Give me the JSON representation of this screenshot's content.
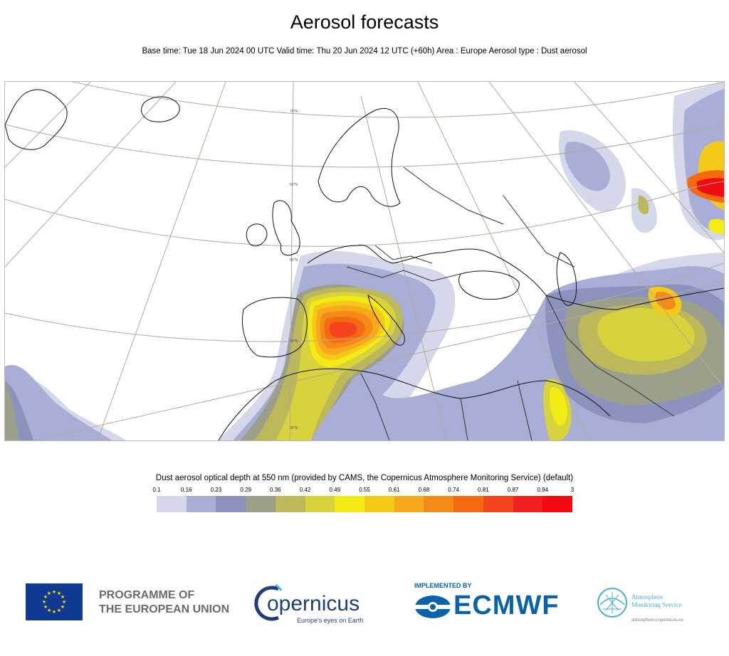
{
  "header": {
    "title": "Aerosol forecasts",
    "subtitle": "Base time: Tue 18 Jun 2024 00 UTC Valid time: Thu 20 Jun 2024 12 UTC (+60h) Area : Europe Aerosol type : Dust aerosol"
  },
  "map": {
    "lat_labels": [
      "70°N",
      "60°N",
      "50°N",
      "40°N",
      "30°N"
    ],
    "colors": {
      "sea": "#ffffff",
      "coast": "#000000",
      "border": "#222222",
      "graticule": "#b3aa96"
    }
  },
  "legend": {
    "title": "Dust aerosol optical depth at 550 nm (provided by CAMS, the Copernicus Atmosphere Monitoring Service) (default)",
    "ticks": [
      "0.1",
      "0.16",
      "0.23",
      "0.29",
      "0.36",
      "0.42",
      "0.49",
      "0.55",
      "0.61",
      "0.68",
      "0.74",
      "0.81",
      "0.87",
      "0.94",
      "3"
    ],
    "colors": [
      "#d4d8ea",
      "#a9aed6",
      "#8c92be",
      "#9ca08a",
      "#bdb85a",
      "#d8d33c",
      "#f3ec14",
      "#f5c918",
      "#f6a91b",
      "#f58b17",
      "#f56911",
      "#f4441d",
      "#f4201f",
      "#f40b12"
    ]
  },
  "logos": {
    "eu_text_line1": "PROGRAMME OF",
    "eu_text_line2": "THE EUROPEAN UNION",
    "copernicus_word": "opernicus",
    "copernicus_tagline": "Europe's eyes on Earth",
    "ecmwf_implemented": "IMPLEMENTED BY",
    "ecmwf_word": "ECMWF",
    "cams_line1": "Atmosphere",
    "cams_line2": "Monitoring Service",
    "cams_url": "atmosphere.copernicus.eu"
  }
}
